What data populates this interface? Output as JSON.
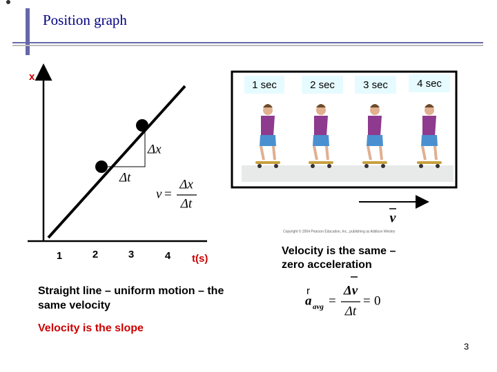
{
  "slide": {
    "title": "Position graph",
    "graph": {
      "y_axis_label": "x",
      "x_tick_labels": [
        "1",
        "2",
        "3",
        "4"
      ],
      "x_axis_label": "t(s)",
      "delta_x": "Δx",
      "delta_t": "Δt",
      "formula": {
        "lhs": "v",
        "equals": "=",
        "numerator": "Δx",
        "denominator": "Δt"
      }
    },
    "figure": {
      "time_labels": [
        "1 sec",
        "2 sec",
        "3 sec",
        "4 sec"
      ],
      "velocity_symbol": "v",
      "copyright": "Copyright © 2004 Pearson Education, Inc., publishing as Addison Wesley"
    },
    "caption_right": [
      "Velocity is the same –",
      "zero acceleration"
    ],
    "caption_left": [
      "Straight line – uniform motion – the",
      "same velocity"
    ],
    "slope_note": "Velocity is the slope",
    "accel_formula": {
      "stray": "r",
      "lhs": "a",
      "subscript": "avg",
      "equals": "=",
      "numerator": "Δv",
      "denominator": "Δt",
      "equals2": "=",
      "result": "0"
    },
    "page_number": "3"
  }
}
